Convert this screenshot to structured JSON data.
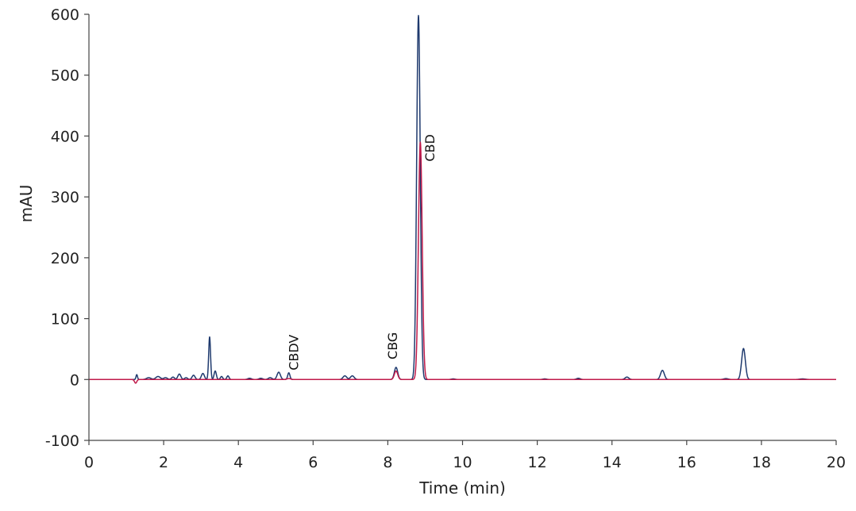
{
  "chart_data": {
    "type": "line",
    "title": "",
    "xlabel": "Time (min)",
    "ylabel": "mAU",
    "xlim": [
      0,
      20
    ],
    "ylim": [
      -100,
      600
    ],
    "xticks": [
      "0",
      "2",
      "4",
      "6",
      "8",
      "10",
      "12",
      "14",
      "16",
      "18",
      "20"
    ],
    "yticks": [
      "-100",
      "0",
      "100",
      "200",
      "300",
      "400",
      "500",
      "600"
    ],
    "grid": false,
    "legend": "none",
    "series": [
      {
        "color": "#1f3a6e",
        "baseline": 0,
        "peaks": [
          {
            "t": 1.28,
            "h": 8,
            "w": 0.02
          },
          {
            "t": 1.6,
            "h": 3,
            "w": 0.06
          },
          {
            "t": 1.85,
            "h": 5,
            "w": 0.06
          },
          {
            "t": 2.05,
            "h": 3,
            "w": 0.05
          },
          {
            "t": 2.25,
            "h": 4,
            "w": 0.04
          },
          {
            "t": 2.42,
            "h": 9,
            "w": 0.04
          },
          {
            "t": 2.6,
            "h": 3,
            "w": 0.04
          },
          {
            "t": 2.8,
            "h": 7,
            "w": 0.04
          },
          {
            "t": 3.05,
            "h": 10,
            "w": 0.04
          },
          {
            "t": 3.23,
            "h": 70,
            "w": 0.025
          },
          {
            "t": 3.38,
            "h": 14,
            "w": 0.03
          },
          {
            "t": 3.55,
            "h": 5,
            "w": 0.03
          },
          {
            "t": 3.72,
            "h": 6,
            "w": 0.03
          },
          {
            "t": 4.3,
            "h": 2,
            "w": 0.05
          },
          {
            "t": 4.6,
            "h": 2,
            "w": 0.05
          },
          {
            "t": 4.85,
            "h": 3,
            "w": 0.05
          },
          {
            "t": 5.08,
            "h": 12,
            "w": 0.045
          },
          {
            "t": 5.35,
            "h": 11,
            "w": 0.03
          },
          {
            "t": 6.85,
            "h": 6,
            "w": 0.05
          },
          {
            "t": 7.05,
            "h": 6,
            "w": 0.05
          },
          {
            "t": 8.22,
            "h": 20,
            "w": 0.045
          },
          {
            "t": 8.82,
            "h": 598,
            "w": 0.048
          },
          {
            "t": 9.75,
            "h": 1,
            "w": 0.05
          },
          {
            "t": 12.2,
            "h": 1,
            "w": 0.05
          },
          {
            "t": 13.1,
            "h": 2,
            "w": 0.05
          },
          {
            "t": 14.4,
            "h": 4,
            "w": 0.05
          },
          {
            "t": 15.35,
            "h": 15,
            "w": 0.05
          },
          {
            "t": 17.05,
            "h": 1.5,
            "w": 0.06
          },
          {
            "t": 17.52,
            "h": 51,
            "w": 0.05
          },
          {
            "t": 19.1,
            "h": 1,
            "w": 0.08
          }
        ]
      },
      {
        "color": "#c01a4a",
        "baseline": 0,
        "peaks": [
          {
            "t": 1.25,
            "h": -6,
            "w": 0.03
          },
          {
            "t": 5.35,
            "h": 1.5,
            "w": 0.05
          },
          {
            "t": 8.22,
            "h": 14,
            "w": 0.045
          },
          {
            "t": 8.87,
            "h": 390,
            "w": 0.05
          }
        ]
      }
    ],
    "annotations": [
      {
        "text": "CBDV",
        "x": 5.6,
        "y": 2
      },
      {
        "text": "CBG",
        "x": 8.25,
        "y": 20
      },
      {
        "text": "CBD",
        "x": 9.25,
        "y": 345
      }
    ]
  }
}
